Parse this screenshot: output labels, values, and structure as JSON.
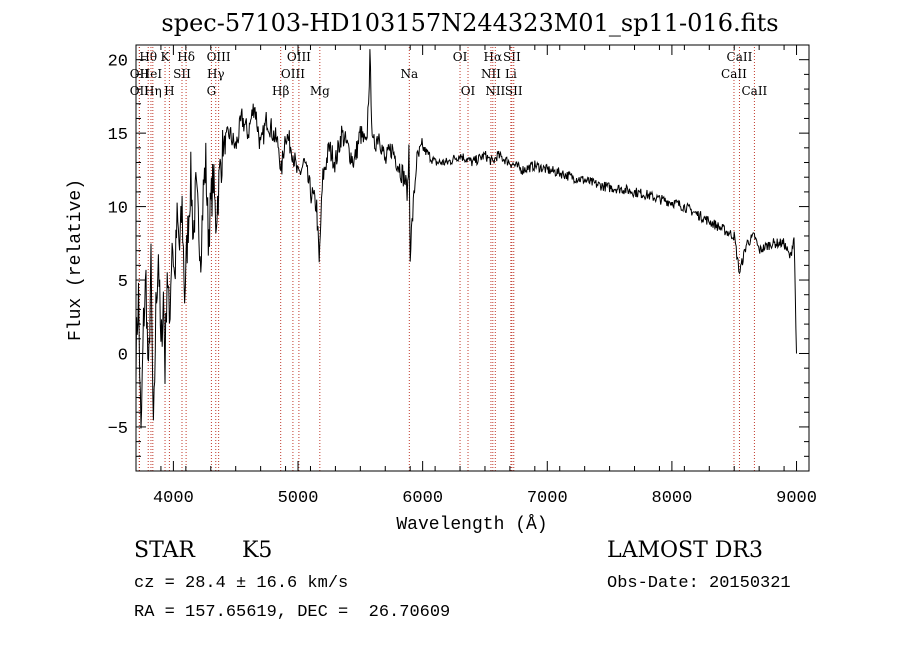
{
  "chart_data": {
    "type": "line",
    "title": "spec-57103-HD103157N244323M01_sp11-016.fits",
    "xlabel": "Wavelength (Å)",
    "ylabel": "Flux (relative)",
    "xlim": [
      3700,
      9100
    ],
    "ylim": [
      -8,
      21
    ],
    "xticks": [
      4000,
      5000,
      6000,
      7000,
      8000,
      9000
    ],
    "yticks": [
      -5,
      0,
      5,
      10,
      15,
      20
    ],
    "series": [
      {
        "name": "flux",
        "color": "#000000",
        "x": [
          3700,
          3720,
          3740,
          3760,
          3780,
          3800,
          3820,
          3840,
          3860,
          3880,
          3900,
          3920,
          3933,
          3950,
          3968,
          3990,
          4010,
          4030,
          4050,
          4070,
          4090,
          4102,
          4120,
          4140,
          4160,
          4180,
          4200,
          4220,
          4240,
          4260,
          4280,
          4300,
          4320,
          4340,
          4360,
          4380,
          4400,
          4450,
          4500,
          4550,
          4600,
          4650,
          4700,
          4750,
          4800,
          4850,
          4861,
          4900,
          4950,
          5000,
          5050,
          5100,
          5150,
          5170,
          5183,
          5200,
          5250,
          5300,
          5350,
          5400,
          5450,
          5500,
          5550,
          5577,
          5600,
          5650,
          5700,
          5750,
          5800,
          5850,
          5880,
          5890,
          5900,
          5950,
          6000,
          6100,
          6200,
          6300,
          6400,
          6500,
          6563,
          6600,
          6700,
          6800,
          6900,
          7000,
          7100,
          7200,
          7300,
          7400,
          7500,
          7600,
          7700,
          7800,
          7900,
          8000,
          8100,
          8200,
          8300,
          8400,
          8500,
          8542,
          8600,
          8662,
          8700,
          8800,
          8900,
          8950,
          8980,
          9000
        ],
        "values": [
          0,
          4,
          -6,
          2,
          5,
          -2,
          6,
          -6,
          3,
          7,
          0,
          4,
          -1,
          6,
          2,
          8,
          5,
          9,
          7,
          10,
          4,
          6,
          9,
          12,
          8,
          11,
          9,
          7,
          11,
          13,
          8,
          10,
          12,
          9,
          11,
          13,
          14,
          15,
          14,
          16,
          15,
          17,
          14,
          16,
          15,
          14,
          12,
          15,
          14,
          12,
          13,
          11,
          10,
          6,
          9,
          12,
          14,
          13,
          15,
          14,
          13,
          15,
          14,
          20,
          14,
          15,
          13,
          14,
          13,
          12,
          11,
          14,
          7,
          13,
          14,
          13,
          13,
          13.5,
          13,
          13.5,
          13,
          13.5,
          13,
          12.5,
          12.8,
          12.5,
          12.3,
          12,
          11.8,
          11.5,
          11.3,
          11.2,
          11,
          10.8,
          10.5,
          10.3,
          10,
          9.5,
          9,
          8.5,
          8,
          5.5,
          7.5,
          8,
          7,
          7.5,
          7.5,
          6.5,
          8,
          0
        ]
      }
    ],
    "lines": [
      {
        "label": "Hθ",
        "x": 3798,
        "row": 0
      },
      {
        "label": "OII",
        "x": 3727,
        "row": 1
      },
      {
        "label": "OII",
        "x": 3727,
        "row": 2
      },
      {
        "label": "HeI",
        "x": 3820,
        "row": 1
      },
      {
        "label": "Hη",
        "x": 3835,
        "row": 2
      },
      {
        "label": "K",
        "x": 3933,
        "row": 0
      },
      {
        "label": "SII",
        "x": 4069,
        "row": 1
      },
      {
        "label": "H",
        "x": 3968,
        "row": 2
      },
      {
        "label": "Hδ",
        "x": 4102,
        "row": 0
      },
      {
        "label": "OIII",
        "x": 4363,
        "row": 0
      },
      {
        "label": "Hγ",
        "x": 4340,
        "row": 1
      },
      {
        "label": "G",
        "x": 4305,
        "row": 2
      },
      {
        "label": "Hβ",
        "x": 4861,
        "row": 2
      },
      {
        "label": "OIII",
        "x": 5007,
        "row": 0
      },
      {
        "label": "OIII",
        "x": 4959,
        "row": 1
      },
      {
        "label": "Mg",
        "x": 5175,
        "row": 2
      },
      {
        "label": "Na",
        "x": 5893,
        "row": 1
      },
      {
        "label": "OI",
        "x": 6300,
        "row": 0
      },
      {
        "label": "OI",
        "x": 6364,
        "row": 2
      },
      {
        "label": "Hα",
        "x": 6563,
        "row": 0
      },
      {
        "label": "SII",
        "x": 6716,
        "row": 0
      },
      {
        "label": "NII",
        "x": 6548,
        "row": 1
      },
      {
        "label": "Li",
        "x": 6708,
        "row": 1
      },
      {
        "label": "NII",
        "x": 6583,
        "row": 2
      },
      {
        "label": "SII",
        "x": 6731,
        "row": 2
      },
      {
        "label": "CaII",
        "x": 8542,
        "row": 0
      },
      {
        "label": "CaII",
        "x": 8498,
        "row": 1
      },
      {
        "label": "CaII",
        "x": 8662,
        "row": 2
      }
    ]
  },
  "info": {
    "object_class": "STAR",
    "subclass": "K5",
    "survey": "LAMOST DR3",
    "redshift": "cz = 28.4 ± 16.6 km/s",
    "obs_date": "Obs-Date: 20150321",
    "coords": "RA = 157.65619, DEC =  26.70609"
  }
}
